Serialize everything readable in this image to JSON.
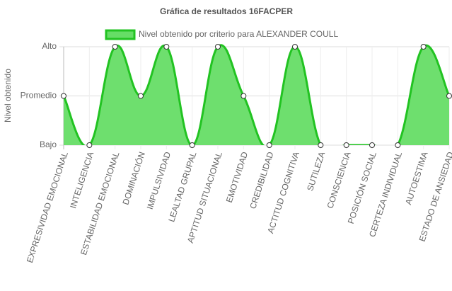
{
  "chart_data": {
    "type": "line",
    "title": "Gráfica de resultados 16FACPER",
    "y_label": "Nivel obtenido",
    "categories": [
      "EXPRESIVIDAD EMOCIONAL",
      "INTELIGENCIA",
      "ESTABILIDAD EMOCIONAL",
      "DOMINACIÓN",
      "IMPULSIVIDAD",
      "LEALTAD GRUPAL",
      "APTITUD SITUACIONAL",
      "EMOTIVIDAD",
      "CREDIBILIDAD",
      "ACTITUD COGNITIVA",
      "SUTILEZA",
      "CONSCIENCIA",
      "POSICIÓN SOCIAL",
      "CERTEZA INDIVIDUAL",
      "AUTOESTIMA",
      "ESTADO DE ANSIEDAD"
    ],
    "series": [
      {
        "name": "Nivel obtenido por criterio para ALEXANDER COULL",
        "color": "#22c322",
        "fill": "#66dd66",
        "values": [
          2,
          1,
          3,
          2,
          3,
          1,
          3,
          2,
          1,
          3,
          1,
          1,
          1,
          1,
          3,
          2
        ]
      }
    ],
    "ylim": [
      1,
      3
    ],
    "yticks": [
      {
        "value": 1,
        "label": "Bajo"
      },
      {
        "value": 2,
        "label": "Promedio"
      },
      {
        "value": 3,
        "label": "Alto"
      }
    ],
    "grid": true,
    "legend": "top"
  }
}
